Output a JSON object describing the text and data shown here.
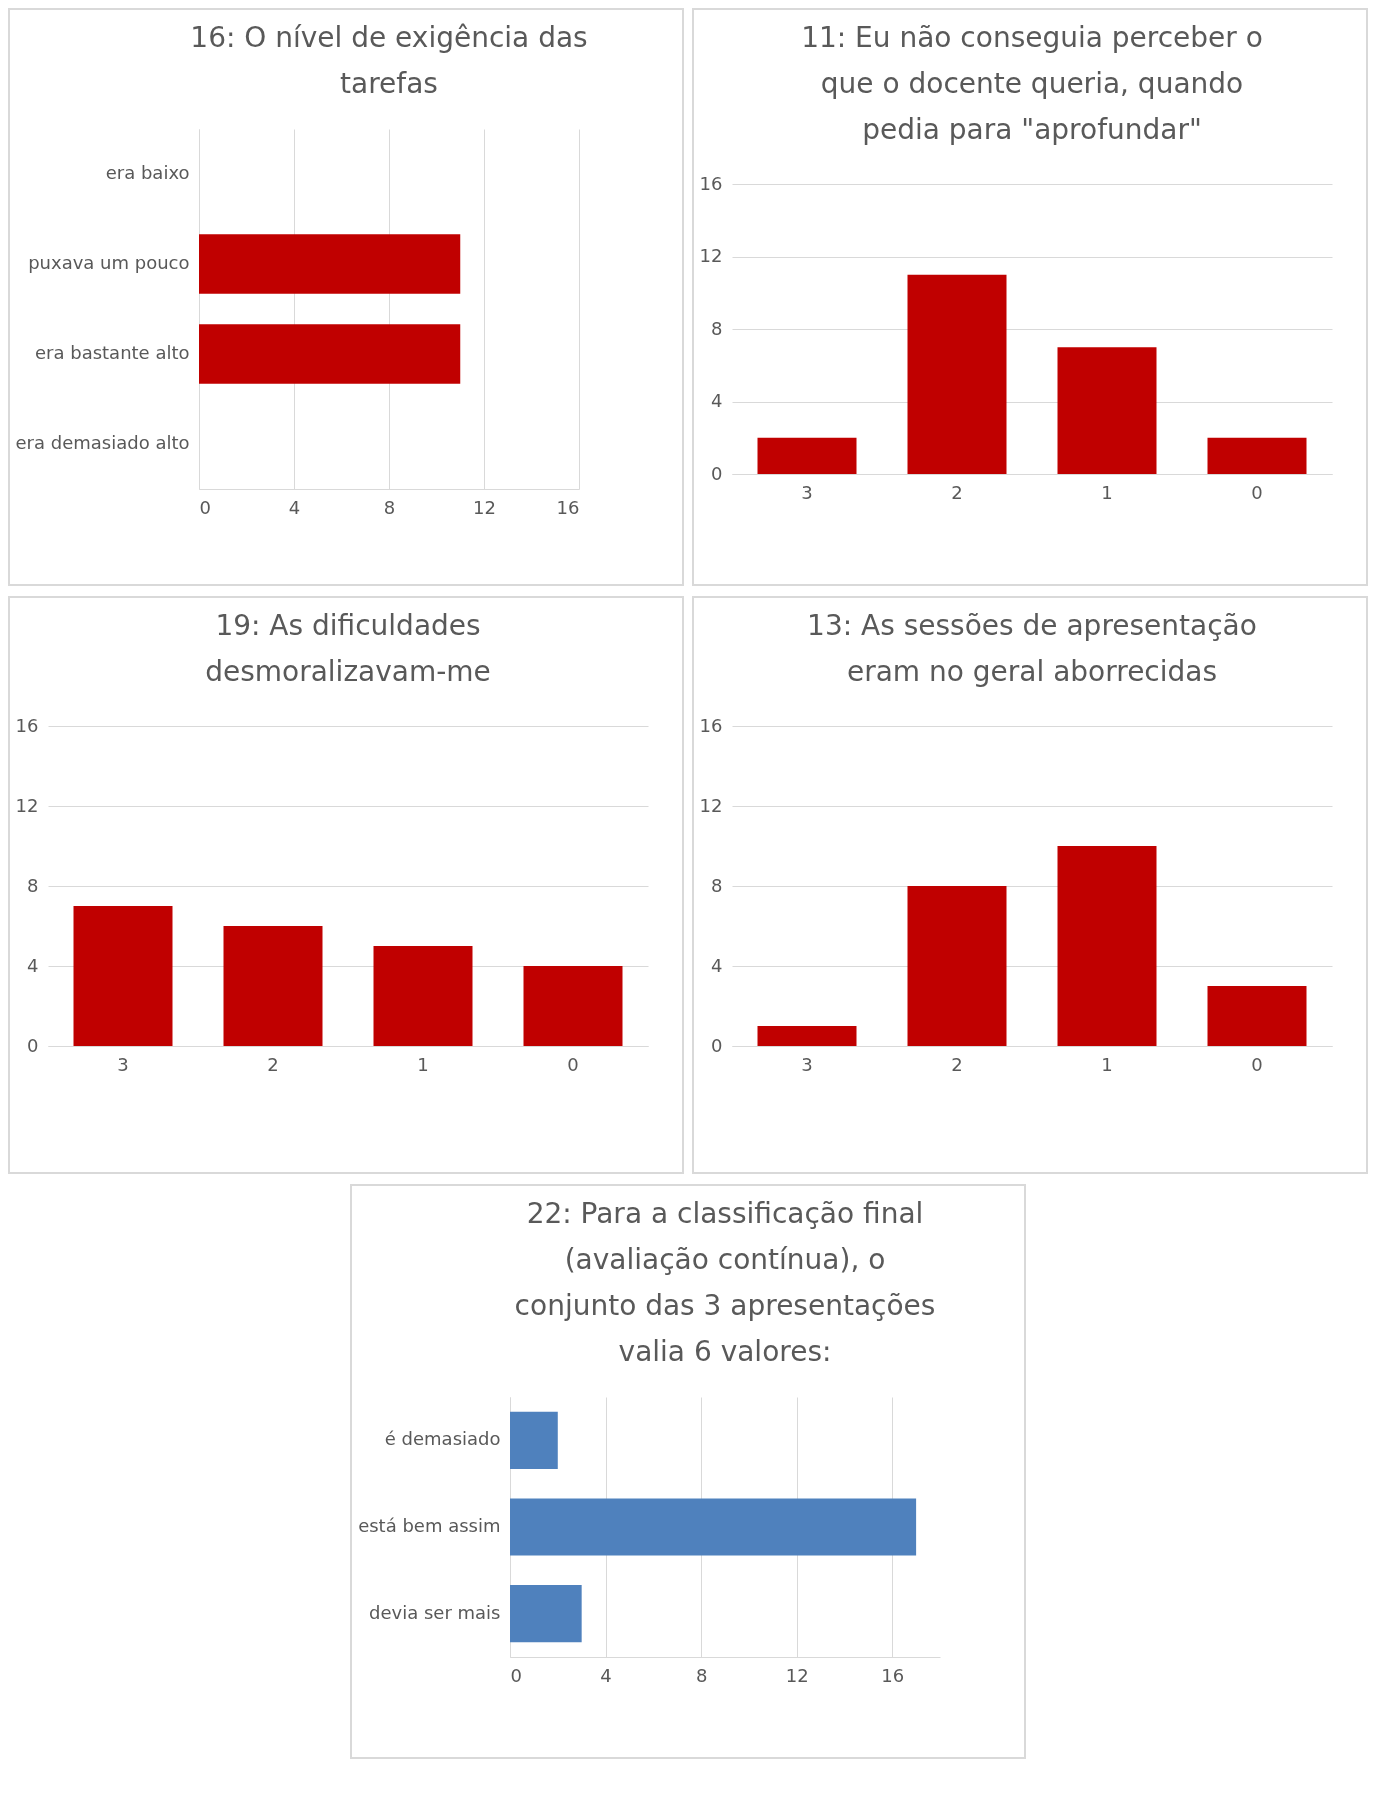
{
  "chart_data": [
    {
      "type": "bar",
      "orientation": "horizontal",
      "title": "16: O nível de exigência das tarefas",
      "categories": [
        "era baixo",
        "puxava um pouco",
        "era bastante alto",
        "era demasiado alto"
      ],
      "values": [
        0,
        11,
        11,
        0
      ],
      "color": "#c00000",
      "xlim": [
        0,
        16
      ],
      "xticks": [
        0,
        4,
        8,
        12,
        16
      ],
      "grid": "x"
    },
    {
      "type": "bar",
      "title": "11: Eu não conseguia perceber o que o docente queria, quando pedia para \"aprofundar\"",
      "categories": [
        "3",
        "2",
        "1",
        "0"
      ],
      "values": [
        2,
        11,
        7,
        2
      ],
      "color": "#c00000",
      "ylim": [
        0,
        16
      ],
      "yticks": [
        0,
        4,
        8,
        12,
        16
      ],
      "grid": "y"
    },
    {
      "type": "bar",
      "title": "19: As dificuldades desmoralizavam-me",
      "categories": [
        "3",
        "2",
        "1",
        "0"
      ],
      "values": [
        7,
        6,
        5,
        4
      ],
      "color": "#c00000",
      "ylim": [
        0,
        16
      ],
      "yticks": [
        0,
        4,
        8,
        12,
        16
      ],
      "grid": "y"
    },
    {
      "type": "bar",
      "title": "13: As sessões de apresentação eram no geral aborrecidas",
      "categories": [
        "3",
        "2",
        "1",
        "0"
      ],
      "values": [
        1,
        8,
        10,
        3
      ],
      "color": "#c00000",
      "ylim": [
        0,
        16
      ],
      "yticks": [
        0,
        4,
        8,
        12,
        16
      ],
      "grid": "y"
    },
    {
      "type": "bar",
      "orientation": "horizontal",
      "title": "22: Para a classificação final (avaliação contínua), o conjunto das 3 apresentações valia 6 valores:",
      "categories": [
        "é demasiado",
        "está bem assim",
        "devia ser mais"
      ],
      "values": [
        2,
        17,
        3
      ],
      "color": "#4f81bd",
      "xlim": [
        0,
        18
      ],
      "xticks": [
        0,
        4,
        8,
        12,
        16
      ],
      "grid": "x"
    }
  ]
}
